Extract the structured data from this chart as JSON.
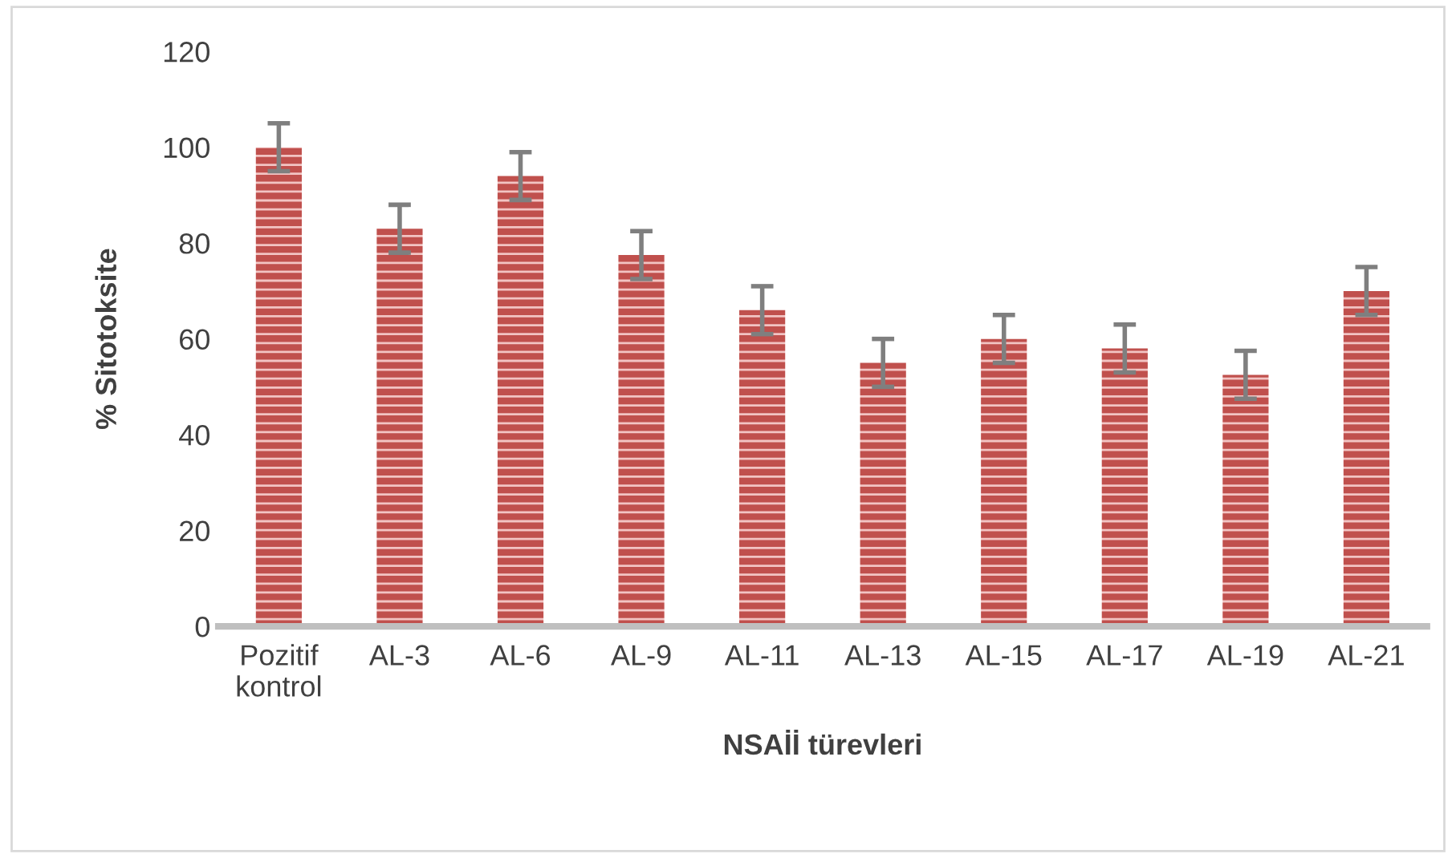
{
  "chart_data": {
    "type": "bar",
    "xlabel": "NSAİİ türevleri",
    "ylabel": "% Sitotoksite",
    "categories": [
      "Pozitif\nkontrol",
      "AL-3",
      "AL-6",
      "AL-9",
      "AL-11",
      "AL-13",
      "AL-15",
      "AL-17",
      "AL-19",
      "AL-21"
    ],
    "values": [
      100,
      83,
      94,
      77.5,
      66,
      55,
      60,
      58,
      52.5,
      70
    ],
    "errors": [
      5,
      5,
      5,
      5,
      5,
      5,
      5,
      5,
      5,
      5
    ],
    "color": "#c0504d",
    "ylim": [
      0,
      120
    ],
    "yticks": [
      0,
      20,
      40,
      60,
      80,
      100,
      120
    ],
    "grid": false
  }
}
